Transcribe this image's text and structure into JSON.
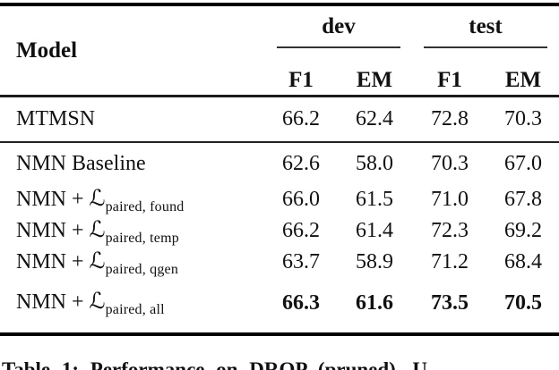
{
  "header": {
    "model": "Model",
    "group_dev": "dev",
    "group_test": "test",
    "col_f1_dev": "F1",
    "col_em_dev": "EM",
    "col_f1_test": "F1",
    "col_em_test": "EM"
  },
  "rows": [
    {
      "model": "MTMSN",
      "f1_dev": "66.2",
      "em_dev": "62.4",
      "f1_test": "72.8",
      "em_test": "70.3"
    },
    {
      "model": "NMN Baseline",
      "f1_dev": "62.6",
      "em_dev": "58.0",
      "f1_test": "70.3",
      "em_test": "67.0"
    },
    {
      "model": "NMN + ",
      "symbol": "ℒ",
      "sub": "paired, found",
      "f1_dev": "66.0",
      "em_dev": "61.5",
      "f1_test": "71.0",
      "em_test": "67.8"
    },
    {
      "model": "NMN + ",
      "symbol": "ℒ",
      "sub": "paired, temp",
      "f1_dev": "66.2",
      "em_dev": "61.4",
      "f1_test": "72.3",
      "em_test": "69.2"
    },
    {
      "model": "NMN + ",
      "symbol": "ℒ",
      "sub": "paired, qgen",
      "f1_dev": "63.7",
      "em_dev": "58.9",
      "f1_test": "71.2",
      "em_test": "68.4"
    },
    {
      "model": "NMN + ",
      "symbol": "ℒ",
      "sub": "paired, all",
      "f1_dev": "66.3",
      "em_dev": "61.6",
      "f1_test": "73.5",
      "em_test": "70.5"
    }
  ],
  "caption": {
    "label": "Table 1:",
    "text": " Performance on DROP (pruned). U"
  }
}
